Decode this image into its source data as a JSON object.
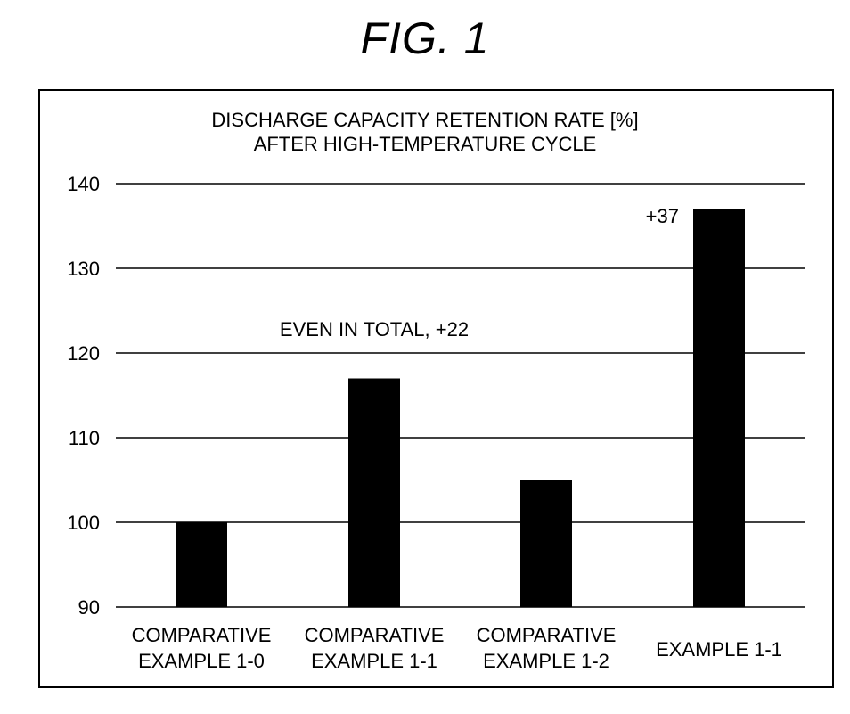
{
  "figure_title": "FIG. 1",
  "chart_data": {
    "type": "bar",
    "title_lines": [
      "DISCHARGE CAPACITY RETENTION RATE [%]",
      "AFTER HIGH-TEMPERATURE CYCLE"
    ],
    "categories": [
      [
        "COMPARATIVE",
        "EXAMPLE 1-0"
      ],
      [
        "COMPARATIVE",
        "EXAMPLE 1-1"
      ],
      [
        "COMPARATIVE",
        "EXAMPLE 1-2"
      ],
      [
        "EXAMPLE 1-1"
      ]
    ],
    "values": [
      100,
      117,
      105,
      137
    ],
    "ylim": [
      90,
      140
    ],
    "yticks": [
      90,
      100,
      110,
      120,
      130,
      140
    ],
    "grid": true,
    "bar_color": "#000000",
    "annotations": [
      {
        "text": "EVEN IN TOTAL, +22",
        "category_index": 1
      },
      {
        "text": "+37",
        "category_index": 3
      }
    ]
  }
}
